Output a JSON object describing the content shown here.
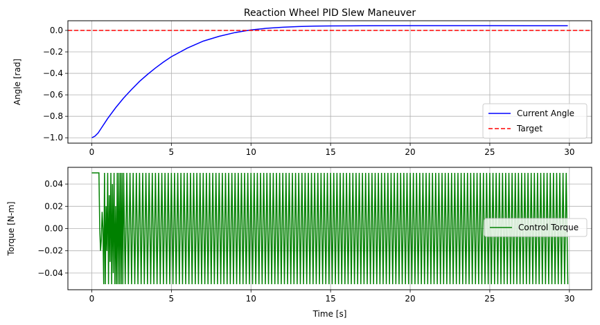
{
  "chart_data": [
    {
      "type": "line",
      "title": "Reaction Wheel PID Slew Maneuver",
      "xlabel": "",
      "ylabel": "Angle [rad]",
      "xlim": [
        -1.5,
        31.4
      ],
      "ylim": [
        -1.05,
        0.09
      ],
      "grid": true,
      "legend_position": "bottom-right",
      "xticks": [
        0,
        5,
        10,
        15,
        20,
        25,
        30
      ],
      "xtick_labels": [
        "0",
        "5",
        "10",
        "15",
        "20",
        "25",
        "30"
      ],
      "yticks": [
        -1.0,
        -0.8,
        -0.6,
        -0.4,
        -0.2,
        0.0
      ],
      "ytick_labels": [
        "−1.0",
        "−0.8",
        "−0.6",
        "−0.4",
        "−0.2",
        "0.0"
      ],
      "series": [
        {
          "name": "Current Angle",
          "color": "#0000ff",
          "style": "solid",
          "x": [
            0,
            0.2,
            0.4,
            0.6,
            0.8,
            1,
            1.5,
            2,
            2.5,
            3,
            3.5,
            4,
            4.5,
            5,
            6,
            7,
            8,
            9,
            10,
            11,
            12,
            13,
            14,
            15,
            17,
            20,
            25,
            29.9
          ],
          "y": [
            -1.0,
            -0.985,
            -0.955,
            -0.91,
            -0.865,
            -0.82,
            -0.72,
            -0.63,
            -0.55,
            -0.475,
            -0.41,
            -0.35,
            -0.295,
            -0.245,
            -0.165,
            -0.1,
            -0.055,
            -0.02,
            0.005,
            0.02,
            0.03,
            0.036,
            0.04,
            0.042,
            0.043,
            0.044,
            0.044,
            0.043
          ]
        },
        {
          "name": "Target",
          "color": "#ff0000",
          "style": "dashed",
          "x": [
            -1.5,
            31.4
          ],
          "y": [
            0.0,
            0.0
          ]
        }
      ]
    },
    {
      "type": "line",
      "title": "",
      "xlabel": "Time [s]",
      "ylabel": "Torque [N-m]",
      "xlim": [
        -1.5,
        31.4
      ],
      "ylim": [
        -0.055,
        0.055
      ],
      "grid": true,
      "legend_position": "center-right",
      "xticks": [
        0,
        5,
        10,
        15,
        20,
        25,
        30
      ],
      "xtick_labels": [
        "0",
        "5",
        "10",
        "15",
        "20",
        "25",
        "30"
      ],
      "yticks": [
        -0.04,
        -0.02,
        0.0,
        0.02,
        0.04
      ],
      "ytick_labels": [
        "−0.04",
        "−0.02",
        "0.00",
        "0.02",
        "0.04"
      ],
      "series": [
        {
          "name": "Control Torque",
          "color": "#008000",
          "style": "solid",
          "x": [
            0,
            0.45,
            0.5,
            0.55,
            0.6,
            0.65,
            0.7,
            0.75,
            0.8,
            0.85,
            0.9,
            0.95,
            1.0,
            1.05,
            1.1,
            1.15,
            1.2,
            1.25,
            1.3,
            1.35,
            1.4,
            1.45,
            1.5,
            1.55,
            1.6,
            1.65,
            1.7,
            1.75,
            1.8,
            1.85,
            1.9,
            1.95,
            2.0
          ],
          "y": [
            0.05,
            0.05,
            0.0,
            -0.02,
            -0.01,
            0.015,
            0.0,
            -0.05,
            0.05,
            -0.05,
            0.02,
            -0.02,
            0.05,
            -0.05,
            0.03,
            -0.03,
            0.05,
            -0.05,
            0.04,
            -0.04,
            0.05,
            -0.05,
            0.02,
            -0.05,
            0.05,
            -0.05,
            0.05,
            -0.05,
            0.05,
            -0.05,
            0.05,
            -0.05,
            0.05
          ],
          "oscillation": {
            "from": 2.0,
            "to": 29.9,
            "period": 0.2,
            "high": 0.05,
            "low": -0.05
          }
        }
      ]
    }
  ]
}
